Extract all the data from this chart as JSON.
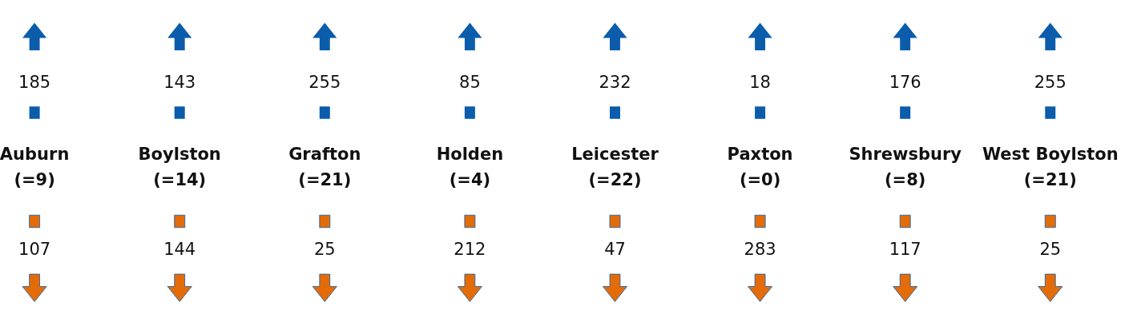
{
  "chart_data": {
    "type": "other",
    "categories": [
      "Auburn\n(=9)",
      "Boylston\n(=14)",
      "Grafton\n(=21)",
      "Holden\n(=4)",
      "Leicester\n(=22)",
      "Paxton\n(=0)",
      "Shrewsbury\n(=8)",
      "West Boylston\n(=21)"
    ],
    "series": [
      {
        "color": "#0b5cab",
        "values": [
          185,
          143,
          255,
          85,
          232,
          18,
          176,
          255
        ]
      },
      {
        "color": "#e36c09",
        "values": [
          107,
          144,
          25,
          212,
          47,
          283,
          117,
          25
        ]
      }
    ],
    "data_labels": true
  }
}
